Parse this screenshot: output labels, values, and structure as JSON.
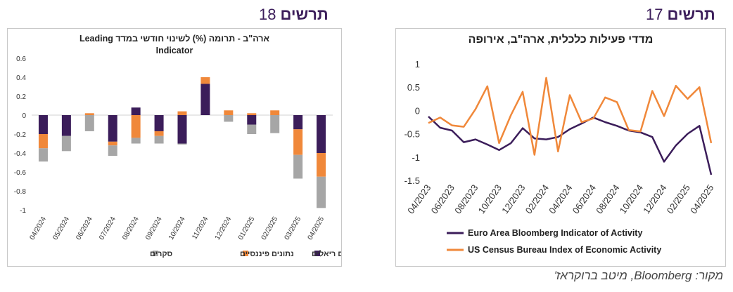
{
  "left_figure": {
    "label": "תרשים",
    "number": "18"
  },
  "right_figure": {
    "label": "תרשים",
    "number": "17"
  },
  "source": "מקור: Bloomberg, מיטב ברוקראז'",
  "chart_data": [
    {
      "type": "bar",
      "stacked": true,
      "title_line1": "ארה\"ב - תרומה (%) לשינוי חודשי במדד Leading",
      "title_line2": "Indicator",
      "categories": [
        "04/2024",
        "05/2024",
        "06/2024",
        "07/2024",
        "08/2024",
        "09/2024",
        "10/2024",
        "11/2024",
        "12/2024",
        "01/2025",
        "02/2025",
        "03/2025",
        "04/2025"
      ],
      "ylim": [
        -1,
        0.6
      ],
      "yticks": [
        "0.6",
        "0.4",
        "0.2",
        "0",
        "-0.2",
        "-0.4",
        "-0.6",
        "-0.8",
        "-1"
      ],
      "legend_position": "bottom",
      "series": [
        {
          "name": "נתונים ריאלים",
          "color": "#3b1d5a",
          "values": [
            -0.2,
            -0.22,
            0,
            -0.28,
            0.08,
            -0.17,
            -0.3,
            0.33,
            0,
            -0.1,
            0,
            -0.15,
            -0.4
          ]
        },
        {
          "name": "נתונים פיננסיים",
          "color": "#f0883a",
          "values": [
            -0.15,
            0,
            0.02,
            -0.04,
            -0.24,
            -0.05,
            0.04,
            0.07,
            0.05,
            0.02,
            0.05,
            -0.27,
            -0.25
          ]
        },
        {
          "name": "סקרים",
          "color": "#a6a6a6",
          "values": [
            -0.14,
            -0.16,
            -0.17,
            -0.11,
            -0.06,
            -0.08,
            -0.01,
            0,
            -0.07,
            -0.1,
            -0.19,
            -0.25,
            -0.33
          ]
        }
      ]
    },
    {
      "type": "line",
      "title": "מדדי פעילות כלכלית, ארה\"ב, אירופה",
      "x": [
        "04/2023",
        "05/2023",
        "06/2023",
        "07/2023",
        "08/2023",
        "09/2023",
        "10/2023",
        "11/2023",
        "12/2023",
        "01/2024",
        "02/2024",
        "03/2024",
        "04/2024",
        "05/2024",
        "06/2024",
        "07/2024",
        "08/2024",
        "09/2024",
        "10/2024",
        "11/2024",
        "12/2024",
        "01/2025",
        "02/2025",
        "03/2025",
        "04/2025"
      ],
      "xtick_labels": [
        "04/2023",
        "06/2023",
        "08/2023",
        "10/2023",
        "12/2023",
        "02/2024",
        "04/2024",
        "06/2024",
        "08/2024",
        "10/2024",
        "12/2024",
        "02/2025",
        "04/2025"
      ],
      "ylim": [
        -1.5,
        1
      ],
      "yticks": [
        "1",
        "0.5",
        "0",
        "-0.5",
        "-1",
        "-1.5"
      ],
      "legend_position": "bottom",
      "series": [
        {
          "name": "Euro Area Bloomberg Indicator of Activity",
          "color": "#3b1d5a",
          "values": [
            -0.13,
            -0.37,
            -0.43,
            -0.68,
            -0.62,
            -0.73,
            -0.85,
            -0.7,
            -0.38,
            -0.6,
            -0.62,
            -0.57,
            -0.4,
            -0.28,
            -0.15,
            -0.25,
            -0.33,
            -0.43,
            -0.47,
            -0.57,
            -1.1,
            -0.75,
            -0.5,
            -0.33,
            -1.38
          ]
        },
        {
          "name": "US Census Bureau Index of Economic Activity",
          "color": "#f0883a",
          "values": [
            -0.27,
            -0.15,
            -0.32,
            -0.35,
            0.03,
            0.52,
            -0.7,
            -0.1,
            0.4,
            -0.95,
            0.7,
            -0.88,
            0.33,
            -0.25,
            -0.17,
            0.28,
            0.18,
            -0.42,
            -0.45,
            0.42,
            -0.12,
            0.53,
            0.25,
            0.5,
            -0.7
          ]
        }
      ]
    }
  ]
}
